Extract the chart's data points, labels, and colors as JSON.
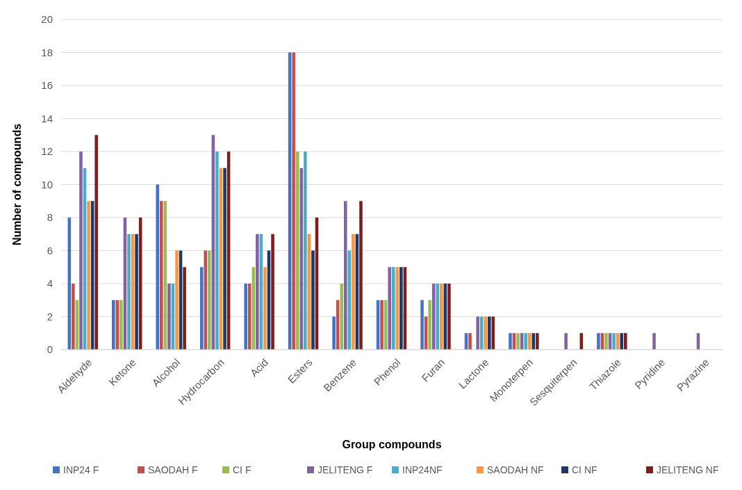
{
  "chart_data": {
    "type": "bar",
    "xlabel": "Group compounds",
    "ylabel": "Number of compounds",
    "categories": [
      "Aldehyde",
      "Ketone",
      "Alcohol",
      "Hydrocarbon",
      "Acid",
      "Esters",
      "Benzene",
      "Phenol",
      "Furan",
      "Lactone",
      "Monoterpen",
      "Sesquiterpen",
      "Thiazole",
      "Pyridine",
      "Pyrazine"
    ],
    "series": [
      {
        "name": "INP24 F",
        "color": "#4472c4",
        "values": [
          8,
          3,
          10,
          5,
          4,
          18,
          2,
          3,
          3,
          1,
          1,
          0,
          1,
          0,
          0
        ]
      },
      {
        "name": "SAODAH F",
        "color": "#c0504d",
        "values": [
          4,
          3,
          9,
          6,
          4,
          18,
          3,
          3,
          2,
          1,
          1,
          0,
          1,
          0,
          0
        ]
      },
      {
        "name": "CI F",
        "color": "#9bbb59",
        "values": [
          3,
          3,
          9,
          6,
          5,
          12,
          4,
          3,
          3,
          0,
          1,
          0,
          1,
          0,
          0
        ]
      },
      {
        "name": "JELITENG F",
        "color": "#8064a2",
        "values": [
          12,
          8,
          4,
          13,
          7,
          11,
          9,
          5,
          4,
          2,
          1,
          1,
          1,
          1,
          1
        ]
      },
      {
        "name": "INP24NF",
        "color": "#4bacc6",
        "values": [
          11,
          7,
          4,
          12,
          7,
          12,
          6,
          5,
          4,
          2,
          1,
          0,
          1,
          0,
          0
        ]
      },
      {
        "name": "SAODAH NF",
        "color": "#f79646",
        "values": [
          9,
          7,
          6,
          11,
          5,
          7,
          7,
          5,
          4,
          2,
          1,
          0,
          1,
          0,
          0
        ]
      },
      {
        "name": "CI NF",
        "color": "#1f3864",
        "values": [
          9,
          7,
          6,
          11,
          6,
          6,
          7,
          5,
          4,
          2,
          1,
          0,
          1,
          0,
          0
        ]
      },
      {
        "name": "JELITENG NF",
        "color": "#7b1e1e",
        "values": [
          13,
          8,
          5,
          12,
          7,
          8,
          9,
          5,
          4,
          2,
          1,
          1,
          1,
          0,
          0
        ]
      }
    ],
    "ylim": [
      0,
      20
    ],
    "yticks": [
      0,
      2,
      4,
      6,
      8,
      10,
      12,
      14,
      16,
      18,
      20
    ],
    "grid": "y",
    "legend": "bottom"
  }
}
